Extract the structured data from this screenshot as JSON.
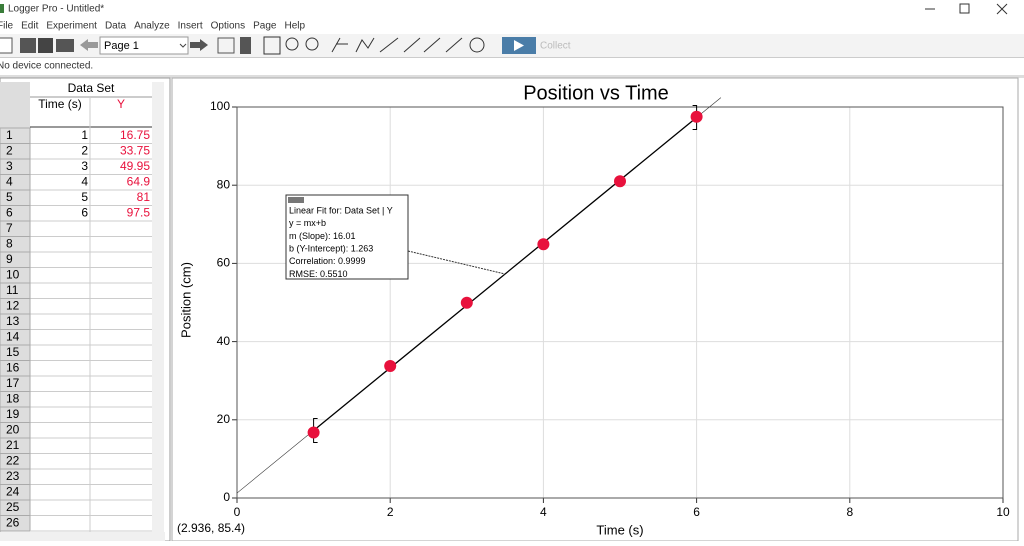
{
  "window": {
    "title": "Logger Pro - Untitled*"
  },
  "menu": [
    "File",
    "Edit",
    "Experiment",
    "Data",
    "Analyze",
    "Insert",
    "Options",
    "Page",
    "Help"
  ],
  "toolbar": {
    "page": "Page 1",
    "collect": "Collect"
  },
  "status": {
    "device": "No device connected.",
    "cursor": "(2.936, 85.4)"
  },
  "data_table": {
    "title": "Data Set",
    "x_column": "Time (s)",
    "row_numbers": [
      1,
      2,
      3,
      4,
      5,
      6,
      7,
      8,
      9,
      10,
      11,
      12,
      13,
      14,
      15,
      16,
      17,
      18,
      19,
      20,
      21,
      22,
      23,
      24,
      25,
      26
    ]
  },
  "chart_data": {
    "type": "scatter",
    "title": "Position vs Time",
    "x_label": "Time (s)",
    "y_label": "Position (cm)",
    "x": [
      1,
      2,
      3,
      4,
      5,
      6
    ],
    "series": [
      {
        "name": "Y",
        "color": "#e8113c",
        "values": [
          16.75,
          33.75,
          49.95,
          64.9,
          81,
          97.5
        ]
      }
    ],
    "xlim": [
      0,
      10
    ],
    "ylim": [
      0,
      100
    ],
    "xticks": [
      0,
      2,
      4,
      6,
      8,
      10
    ],
    "yticks": [
      0,
      20,
      40,
      60,
      80,
      100
    ],
    "grid": true,
    "fit": {
      "slope": 16.01,
      "intercept": 1.263,
      "label_lines": [
        "Linear Fit for: Data Set | Y",
        "y = mx+b",
        "m (Slope): 16.01",
        "b (Y-Intercept): 1.263",
        "Correlation: 0.9999",
        "RMSE: 0.5510"
      ]
    }
  }
}
